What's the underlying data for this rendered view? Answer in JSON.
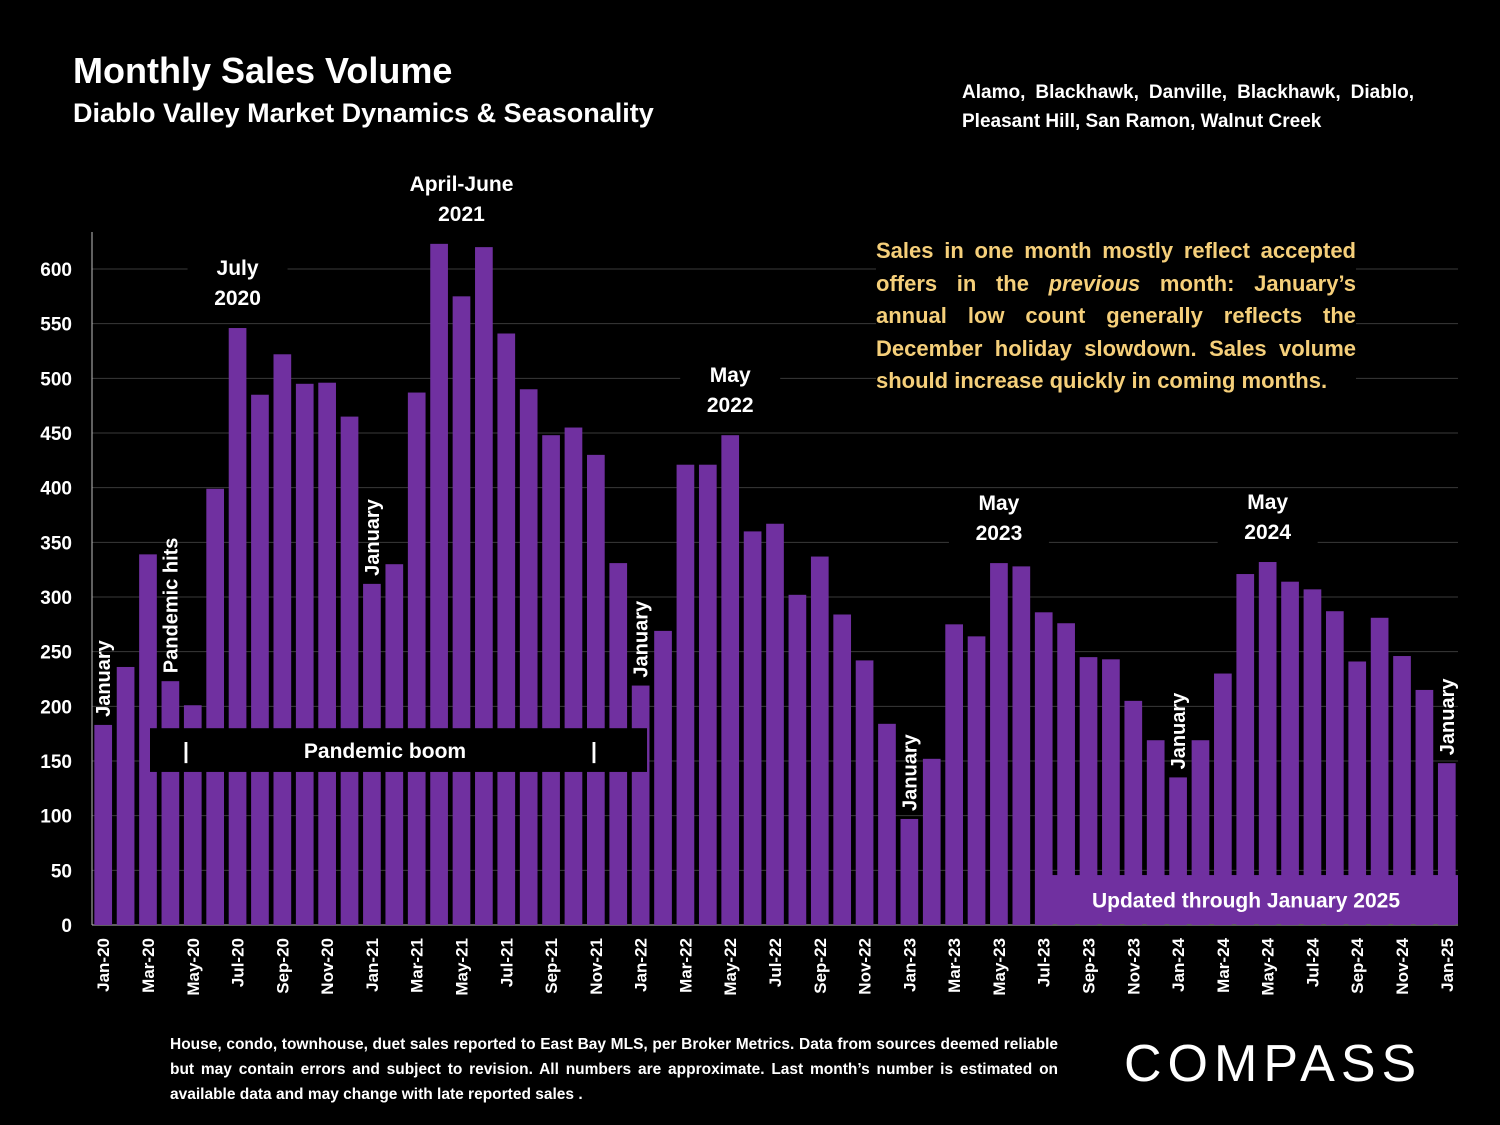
{
  "header": {
    "title": "Monthly Sales Volume",
    "subtitle": "Diablo Valley Market Dynamics & Seasonality",
    "regions": "Alamo, Blackhawk, Danville, Blackhawk, Diablo, Pleasant Hill, San Ramon, Walnut Creek"
  },
  "callout": {
    "before": "Sales in one month mostly reflect accepted offers in the ",
    "emph": "previous",
    "after": " month: January’s annual low count generally reflects the December holiday slowdown. Sales volume should increase quickly in coming months."
  },
  "footnote": "House, condo, townhouse, duet sales reported to East Bay MLS, per Broker Metrics. Data from sources deemed reliable but may contain errors and subject to revision. All numbers are approximate. Last month’s number is estimated on available data and may change with late reported sales .",
  "logo": "COMPASS",
  "colors": {
    "bar": "#7030a0",
    "background": "#000000",
    "callout_text": "#f5cf7a",
    "grid": "#3a3a3a"
  },
  "chart_data": {
    "type": "bar",
    "categories": [
      "Jan-20",
      "Feb-20",
      "Mar-20",
      "Apr-20",
      "May-20",
      "Jun-20",
      "Jul-20",
      "Aug-20",
      "Sep-20",
      "Oct-20",
      "Nov-20",
      "Dec-20",
      "Jan-21",
      "Feb-21",
      "Mar-21",
      "Apr-21",
      "May-21",
      "Jun-21",
      "Jul-21",
      "Aug-21",
      "Sep-21",
      "Oct-21",
      "Nov-21",
      "Dec-21",
      "Jan-22",
      "Feb-22",
      "Mar-22",
      "Apr-22",
      "May-22",
      "Jun-22",
      "Jul-22",
      "Aug-22",
      "Sep-22",
      "Oct-22",
      "Nov-22",
      "Dec-22",
      "Jan-23",
      "Feb-23",
      "Mar-23",
      "Apr-23",
      "May-23",
      "Jun-23",
      "Jul-23",
      "Aug-23",
      "Sep-23",
      "Oct-23",
      "Nov-23",
      "Dec-23",
      "Jan-24",
      "Feb-24",
      "Mar-24",
      "Apr-24",
      "May-24",
      "Jun-24",
      "Jul-24",
      "Aug-24",
      "Sep-24",
      "Oct-24",
      "Nov-24",
      "Dec-24",
      "Jan-25"
    ],
    "tick_labels": [
      "Jan-20",
      "Mar-20",
      "May-20",
      "Jul-20",
      "Sep-20",
      "Nov-20",
      "Jan-21",
      "Mar-21",
      "May-21",
      "Jul-21",
      "Sep-21",
      "Nov-21",
      "Jan-22",
      "Mar-22",
      "May-22",
      "Jul-22",
      "Sep-22",
      "Nov-22",
      "Jan-23",
      "Mar-23",
      "May-23",
      "Jul-23",
      "Sep-23",
      "Nov-23",
      "Jan-24",
      "Mar-24",
      "May-24",
      "Jul-24",
      "Sep-24",
      "Nov-24",
      "Jan-25"
    ],
    "values": [
      183,
      236,
      339,
      223,
      201,
      399,
      546,
      485,
      522,
      495,
      496,
      465,
      312,
      330,
      487,
      623,
      575,
      620,
      541,
      490,
      448,
      455,
      430,
      331,
      219,
      269,
      421,
      421,
      448,
      360,
      367,
      302,
      337,
      284,
      242,
      184,
      97,
      152,
      275,
      264,
      331,
      328,
      286,
      276,
      245,
      243,
      205,
      169,
      135,
      169,
      230,
      321,
      332,
      314,
      307,
      287,
      241,
      281,
      246,
      215,
      148
    ],
    "ylim": [
      0,
      630
    ],
    "yticks": [
      0,
      50,
      100,
      150,
      200,
      250,
      300,
      350,
      400,
      450,
      500,
      550,
      600
    ],
    "grid": true,
    "annotations": [
      {
        "text": "January",
        "index": 0,
        "value": 183,
        "orientation": "vertical"
      },
      {
        "text": "Pandemic hits",
        "index": 3,
        "value": 223,
        "orientation": "vertical"
      },
      {
        "text": "July",
        "text2": "2020",
        "index": 6,
        "value": 546,
        "orientation": "horizontal"
      },
      {
        "text": "January",
        "index": 12,
        "value": 312,
        "orientation": "vertical"
      },
      {
        "text": "April-June",
        "text2": "2021",
        "index": 16,
        "value": 623,
        "orientation": "horizontal"
      },
      {
        "text": "January",
        "index": 24,
        "value": 219,
        "orientation": "vertical"
      },
      {
        "text": "May",
        "text2": "2022",
        "index": 28,
        "value": 448,
        "orientation": "horizontal"
      },
      {
        "text": "January",
        "index": 36,
        "value": 97,
        "orientation": "vertical"
      },
      {
        "text": "May",
        "text2": "2023",
        "index": 40,
        "value": 331,
        "orientation": "horizontal"
      },
      {
        "text": "January",
        "index": 48,
        "value": 135,
        "orientation": "vertical"
      },
      {
        "text": "May",
        "text2": "2024",
        "index": 52,
        "value": 332,
        "orientation": "horizontal"
      },
      {
        "text": "January",
        "index": 60,
        "value": 148,
        "orientation": "vertical"
      }
    ],
    "boom_band": {
      "text": "Pandemic boom",
      "start_index": 4,
      "end_index": 22,
      "from_value": 140,
      "to_value": 180,
      "marker": "|"
    },
    "updated_note": {
      "text": "Updated through January 2025",
      "from_value": 0,
      "to_value": 42
    }
  }
}
